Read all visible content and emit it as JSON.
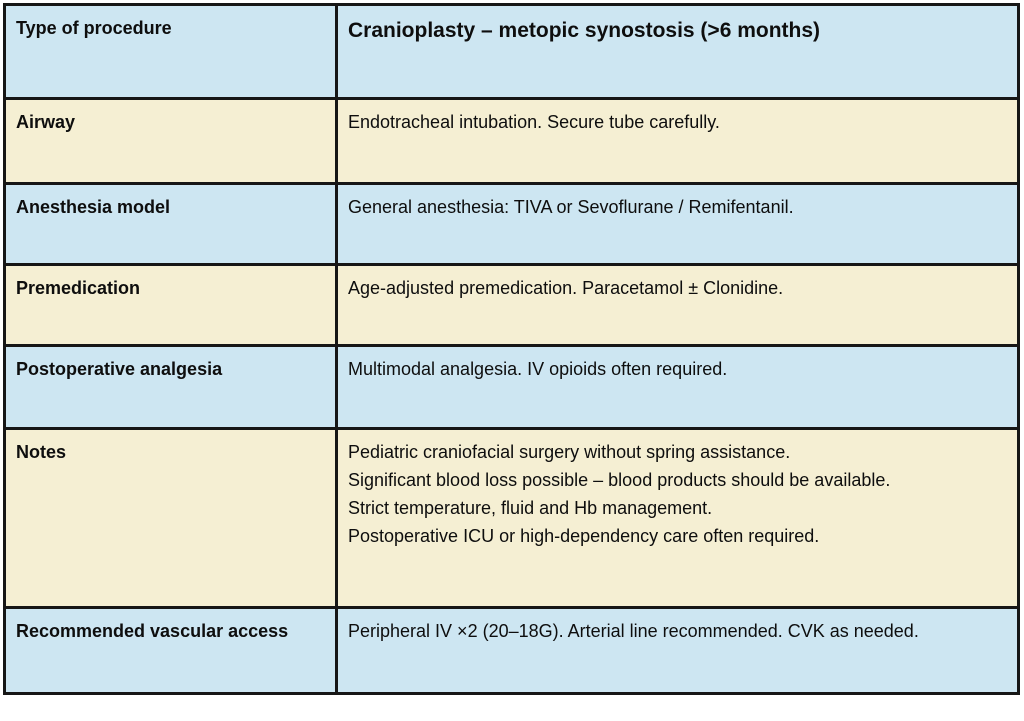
{
  "colors": {
    "row_blue": "#cde6f2",
    "row_cream": "#f5efd3",
    "border": "#161616",
    "text": "#0e0e0e",
    "page_background": "#ffffff"
  },
  "table": {
    "header_row": {
      "label": "Type of procedure",
      "title": "Cranioplasty – metopic synostosis (>6 months)"
    },
    "rows": [
      {
        "label": "Airway",
        "value": "Endotracheal intubation. Secure tube carefully."
      },
      {
        "label": "Anesthesia model",
        "value": "General anesthesia: TIVA or Sevoflurane / Remifentanil."
      },
      {
        "label": "Premedication",
        "value": "Age-adjusted premedication. Paracetamol ± Clonidine."
      },
      {
        "label": "Postoperative analgesia",
        "value": "Multimodal analgesia. IV opioids often required."
      },
      {
        "label": "Notes",
        "lines": [
          "Pediatric craniofacial surgery without spring assistance.",
          "Significant blood loss possible – blood products should be available.",
          "Strict temperature, fluid and Hb management.",
          "Postoperative ICU or high-dependency care often required."
        ]
      },
      {
        "label": "Recommended vascular access",
        "value": "Peripheral IV ×2 (20–18G). Arterial line recommended. CVK as needed."
      }
    ]
  }
}
